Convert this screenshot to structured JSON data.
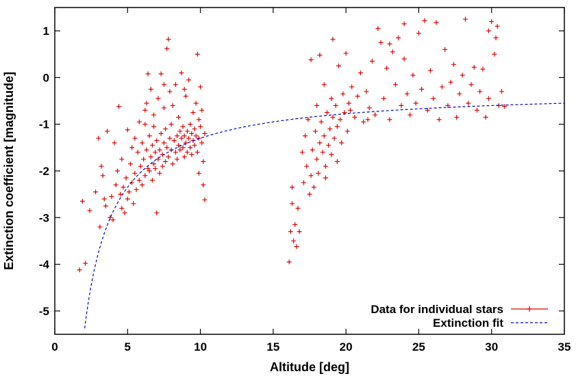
{
  "chart_data": {
    "type": "scatter",
    "title": "",
    "xlabel": "Altitude [deg]",
    "ylabel": "Extinction coefficient [magnitude]",
    "xlim": [
      0,
      35
    ],
    "ylim": [
      -5.5,
      1.5
    ],
    "xticks": [
      0,
      5,
      10,
      15,
      20,
      25,
      30,
      35
    ],
    "xtick_labels": [
      "0",
      "5",
      "10",
      "15",
      "20",
      "25",
      "30",
      "35"
    ],
    "yticks": [
      -5,
      -4,
      -3,
      -2,
      -1,
      0,
      1
    ],
    "ytick_labels": [
      "-5",
      "-4",
      "-3",
      "-2",
      "-1",
      "0",
      "1"
    ],
    "grid": false,
    "legend_position": "bottom-right",
    "colors": {
      "data": "#e00000",
      "fit": "#0000cc"
    },
    "series": [
      {
        "name": "Data for individual stars",
        "kind": "points",
        "marker": "cross",
        "points": [
          [
            1.7,
            -4.12
          ],
          [
            2.1,
            -3.98
          ],
          [
            1.9,
            -2.65
          ],
          [
            2.4,
            -2.85
          ],
          [
            2.8,
            -2.45
          ],
          [
            3.0,
            -1.3
          ],
          [
            3.2,
            -1.9
          ],
          [
            3.3,
            -2.1
          ],
          [
            3.1,
            -3.2
          ],
          [
            3.4,
            -2.6
          ],
          [
            3.5,
            -2.75
          ],
          [
            3.6,
            -1.15
          ],
          [
            3.8,
            -3.0
          ],
          [
            3.9,
            -2.55
          ],
          [
            4.0,
            -3.05
          ],
          [
            4.1,
            -1.4
          ],
          [
            4.2,
            -2.3
          ],
          [
            4.3,
            -2.0
          ],
          [
            4.4,
            -0.62
          ],
          [
            4.5,
            -2.5
          ],
          [
            4.6,
            -2.8
          ],
          [
            4.6,
            -1.75
          ],
          [
            4.7,
            -2.35
          ],
          [
            4.8,
            -2.9
          ],
          [
            4.9,
            -2.15
          ],
          [
            5.0,
            -2.6
          ],
          [
            5.0,
            -1.12
          ],
          [
            5.1,
            -2.45
          ],
          [
            5.2,
            -1.85
          ],
          [
            5.3,
            -2.25
          ],
          [
            5.3,
            -1.5
          ],
          [
            5.4,
            -2.7
          ],
          [
            5.5,
            -2.05
          ],
          [
            5.5,
            -1.3
          ],
          [
            5.6,
            -2.4
          ],
          [
            5.7,
            -1.6
          ],
          [
            5.8,
            -2.2
          ],
          [
            5.8,
            -0.95
          ],
          [
            5.9,
            -1.9
          ],
          [
            6.0,
            -2.3
          ],
          [
            6.0,
            -1.4
          ],
          [
            6.1,
            -1.75
          ],
          [
            6.2,
            -2.1
          ],
          [
            6.2,
            -1.0
          ],
          [
            6.3,
            -0.55
          ],
          [
            6.3,
            -1.55
          ],
          [
            6.4,
            -1.95
          ],
          [
            6.4,
            0.08
          ],
          [
            6.5,
            -1.25
          ],
          [
            6.5,
            -2.0
          ],
          [
            6.6,
            -1.7
          ],
          [
            6.6,
            -0.25
          ],
          [
            6.7,
            -1.45
          ],
          [
            6.7,
            -2.2
          ],
          [
            6.8,
            -1.85
          ],
          [
            6.8,
            -0.8
          ],
          [
            6.9,
            -1.6
          ],
          [
            6.9,
            -1.95
          ],
          [
            7.0,
            -1.35
          ],
          [
            7.0,
            -2.9
          ],
          [
            7.1,
            -1.75
          ],
          [
            7.1,
            -0.45
          ],
          [
            7.2,
            -1.55
          ],
          [
            7.2,
            -2.05
          ],
          [
            7.3,
            -1.2
          ],
          [
            7.3,
            0.08
          ],
          [
            7.4,
            -1.65
          ],
          [
            7.4,
            -1.9
          ],
          [
            7.5,
            -1.4
          ],
          [
            7.5,
            -0.65
          ],
          [
            7.6,
            -1.8
          ],
          [
            7.6,
            -1.1
          ],
          [
            7.7,
            0.62
          ],
          [
            7.7,
            -1.5
          ],
          [
            7.8,
            0.82
          ],
          [
            7.8,
            -1.7
          ],
          [
            7.9,
            -1.3
          ],
          [
            7.9,
            -0.3
          ],
          [
            8.0,
            -1.55
          ],
          [
            8.0,
            -1.0
          ],
          [
            8.1,
            -1.85
          ],
          [
            8.1,
            -0.6
          ],
          [
            8.2,
            -1.35
          ],
          [
            8.3,
            -1.6
          ],
          [
            8.3,
            -0.15
          ],
          [
            8.4,
            -1.25
          ],
          [
            8.4,
            -1.75
          ],
          [
            8.5,
            -1.45
          ],
          [
            8.5,
            -0.85
          ],
          [
            8.6,
            -1.15
          ],
          [
            8.6,
            -1.55
          ],
          [
            8.7,
            -1.3
          ],
          [
            8.7,
            0.1
          ],
          [
            8.8,
            -1.5
          ],
          [
            8.8,
            -1.05
          ],
          [
            8.9,
            -1.25
          ],
          [
            8.9,
            -1.7
          ],
          [
            9.0,
            -1.4
          ],
          [
            9.0,
            -0.4
          ],
          [
            9.1,
            -1.15
          ],
          [
            9.1,
            -1.6
          ],
          [
            9.2,
            -1.3
          ],
          [
            9.2,
            -0.05
          ],
          [
            9.3,
            -1.5
          ],
          [
            9.3,
            -1.0
          ],
          [
            9.4,
            -1.2
          ],
          [
            9.4,
            -1.65
          ],
          [
            9.5,
            -1.35
          ],
          [
            9.5,
            -0.75
          ],
          [
            9.6,
            -1.1
          ],
          [
            9.6,
            -1.45
          ],
          [
            9.7,
            -0.55
          ],
          [
            9.7,
            -1.25
          ],
          [
            9.8,
            0.5
          ],
          [
            9.8,
            -1.6
          ],
          [
            9.9,
            -0.9
          ],
          [
            9.9,
            -1.3
          ],
          [
            10.0,
            -0.2
          ],
          [
            10.0,
            -1.05
          ],
          [
            10.1,
            -1.4
          ],
          [
            10.1,
            -0.7
          ],
          [
            10.2,
            -2.3
          ],
          [
            10.2,
            -1.8
          ],
          [
            10.3,
            -2.62
          ],
          [
            10.3,
            -1.2
          ],
          [
            6.8,
            -1.05
          ],
          [
            7.5,
            -0.15
          ],
          [
            8.9,
            -0.25
          ],
          [
            9.9,
            -2.05
          ],
          [
            6.2,
            -0.7
          ],
          [
            16.1,
            -3.95
          ],
          [
            16.2,
            -3.3
          ],
          [
            16.3,
            -2.7
          ],
          [
            16.3,
            -2.35
          ],
          [
            16.4,
            -3.5
          ],
          [
            16.5,
            -3.15
          ],
          [
            16.6,
            -3.62
          ],
          [
            16.7,
            -2.8
          ],
          [
            16.8,
            -3.3
          ],
          [
            17.0,
            -1.6
          ],
          [
            17.1,
            -2.25
          ],
          [
            17.2,
            -1.25
          ],
          [
            17.3,
            -1.9
          ],
          [
            17.4,
            -0.9
          ],
          [
            17.5,
            -2.5
          ],
          [
            17.6,
            -2.1
          ],
          [
            17.6,
            0.38
          ],
          [
            17.7,
            -1.55
          ],
          [
            17.8,
            -2.35
          ],
          [
            17.9,
            -1.15
          ],
          [
            18.0,
            -0.6
          ],
          [
            18.0,
            -1.75
          ],
          [
            18.1,
            -2.05
          ],
          [
            18.2,
            -1.4
          ],
          [
            18.2,
            0.48
          ],
          [
            18.3,
            -0.95
          ],
          [
            18.4,
            -1.6
          ],
          [
            18.5,
            -1.25
          ],
          [
            18.5,
            -0.15
          ],
          [
            18.6,
            -1.9
          ],
          [
            18.7,
            -0.75
          ],
          [
            18.8,
            -1.45
          ],
          [
            18.9,
            -1.1
          ],
          [
            19.0,
            -0.45
          ],
          [
            19.0,
            -1.65
          ],
          [
            19.1,
            -0.85
          ],
          [
            19.1,
            0.82
          ],
          [
            19.2,
            -1.3
          ],
          [
            19.3,
            -0.6
          ],
          [
            19.4,
            -1.05
          ],
          [
            19.5,
            0.25
          ],
          [
            19.6,
            -0.9
          ],
          [
            19.7,
            -1.4
          ],
          [
            19.8,
            -0.35
          ],
          [
            19.9,
            -0.75
          ],
          [
            20.0,
            0.52
          ],
          [
            20.1,
            -1.15
          ],
          [
            20.2,
            -0.55
          ],
          [
            20.4,
            -0.2
          ],
          [
            20.6,
            -0.85
          ],
          [
            20.8,
            -0.4
          ],
          [
            21.0,
            0.1
          ],
          [
            21.2,
            -0.95
          ],
          [
            21.4,
            -0.3
          ],
          [
            21.6,
            -0.65
          ],
          [
            21.8,
            0.35
          ],
          [
            22.0,
            -0.8
          ],
          [
            22.2,
            1.05
          ],
          [
            22.4,
            0.75
          ],
          [
            22.6,
            -0.45
          ],
          [
            22.8,
            0.2
          ],
          [
            23.0,
            -0.9
          ],
          [
            23.2,
            0.55
          ],
          [
            23.4,
            -0.15
          ],
          [
            23.6,
            0.85
          ],
          [
            23.8,
            -0.6
          ],
          [
            24.0,
            1.15
          ],
          [
            24.0,
            0.4
          ],
          [
            24.2,
            -0.35
          ],
          [
            24.4,
            -0.8
          ],
          [
            24.6,
            0.05
          ],
          [
            24.8,
            -0.55
          ],
          [
            25.0,
            0.95
          ],
          [
            25.2,
            -0.25
          ],
          [
            25.4,
            1.22
          ],
          [
            25.6,
            -0.7
          ],
          [
            25.8,
            0.15
          ],
          [
            26.0,
            -0.45
          ],
          [
            26.2,
            1.18
          ],
          [
            26.4,
            -0.9
          ],
          [
            26.6,
            -0.2
          ],
          [
            26.8,
            0.6
          ],
          [
            27.0,
            -0.6
          ],
          [
            27.2,
            -0.1
          ],
          [
            27.4,
            0.28
          ],
          [
            27.6,
            -0.85
          ],
          [
            27.8,
            -0.35
          ],
          [
            28.0,
            0.05
          ],
          [
            28.2,
            1.25
          ],
          [
            28.4,
            -0.55
          ],
          [
            28.6,
            -0.15
          ],
          [
            28.8,
            0.22
          ],
          [
            29.0,
            -0.7
          ],
          [
            29.2,
            -0.3
          ],
          [
            29.4,
            0.18
          ],
          [
            29.6,
            -0.85
          ],
          [
            29.8,
            -0.45
          ],
          [
            30.0,
            1.2
          ],
          [
            30.2,
            0.5
          ],
          [
            30.4,
            1.1
          ],
          [
            30.5,
            -0.6
          ],
          [
            30.7,
            -0.3
          ],
          [
            30.9,
            -0.62
          ],
          [
            29.8,
            1.0
          ],
          [
            30.3,
            0.85
          ],
          [
            23.0,
            0.72
          ],
          [
            21.5,
            -0.9
          ],
          [
            20.3,
            -0.7
          ],
          [
            19.4,
            -1.8
          ],
          [
            18.6,
            -2.15
          ]
        ]
      },
      {
        "name": "Extinction fit",
        "kind": "line",
        "style": "dashed",
        "model": "y = a + b / x",
        "a": -0.25,
        "b": -10.5,
        "x_range": [
          2.05,
          35
        ]
      }
    ]
  }
}
